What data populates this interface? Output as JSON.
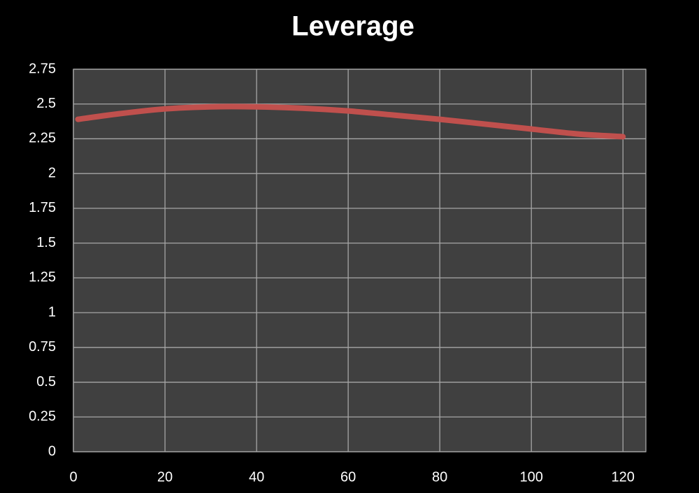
{
  "chart_data": {
    "type": "line",
    "title": "Leverage",
    "x": [
      1,
      10,
      20,
      30,
      40,
      50,
      60,
      70,
      80,
      90,
      100,
      110,
      120
    ],
    "series": [
      {
        "name": "Leverage",
        "color": "#c0504d",
        "values": [
          2.39,
          2.43,
          2.465,
          2.48,
          2.48,
          2.47,
          2.45,
          2.42,
          2.39,
          2.355,
          2.32,
          2.285,
          2.265
        ]
      }
    ],
    "xlim": [
      0,
      125
    ],
    "xticks": [
      0,
      20,
      40,
      60,
      80,
      100,
      120
    ],
    "ylim": [
      0,
      2.75
    ],
    "yticks": [
      0,
      0.25,
      0.5,
      0.75,
      1,
      1.25,
      1.5,
      1.75,
      2,
      2.25,
      2.5,
      2.75
    ],
    "grid": true,
    "plot_background": "#404040"
  }
}
